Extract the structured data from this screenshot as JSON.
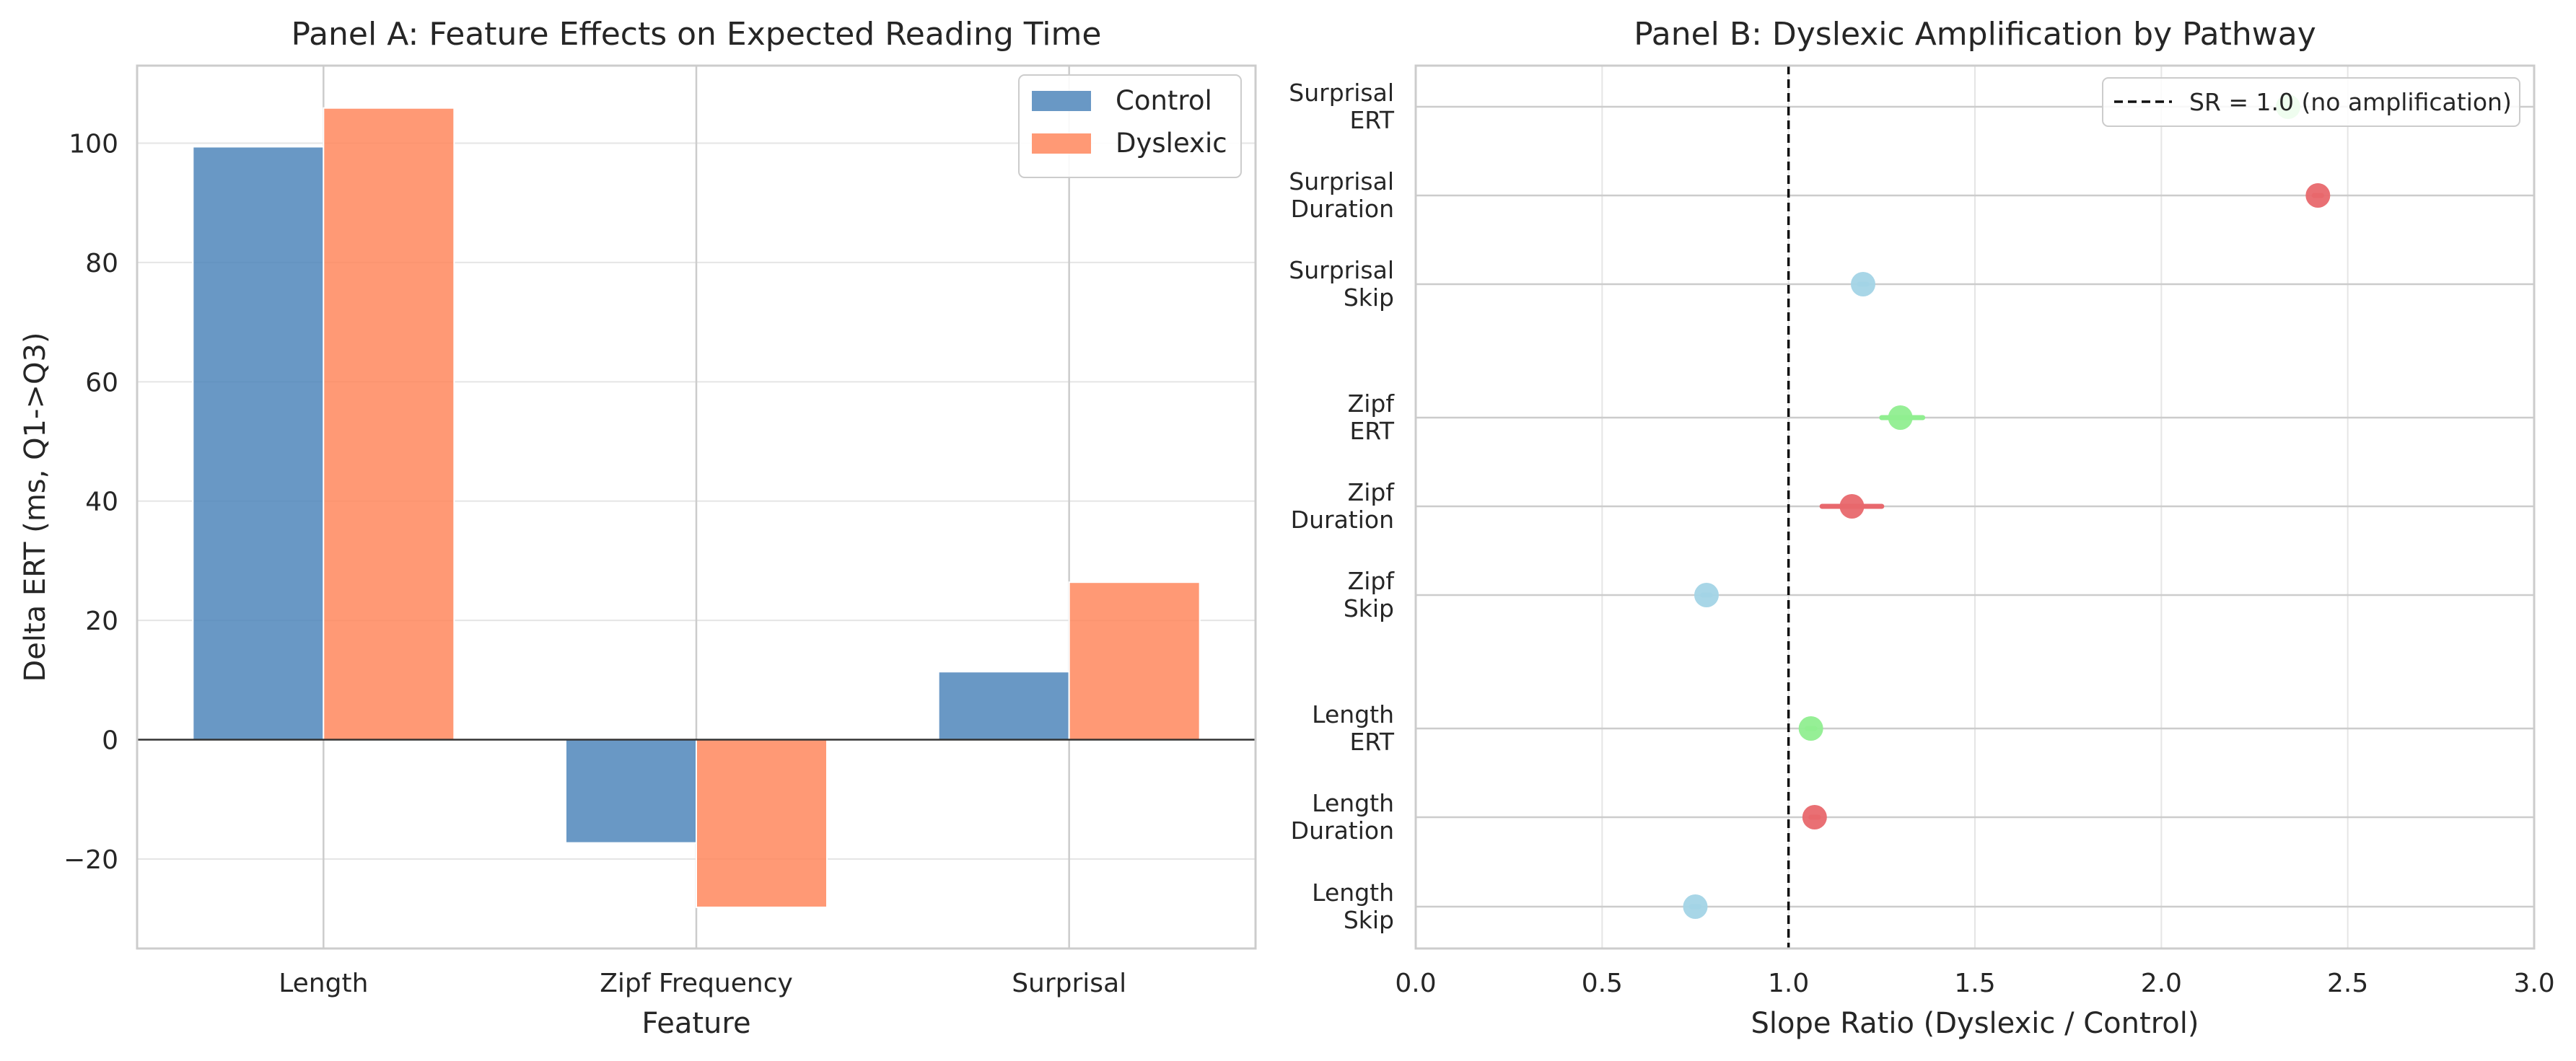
{
  "colors": {
    "control": "#4f86bb",
    "dyslexic": "#ff875d",
    "erl": "#90ee90",
    "duration": "#e8686d",
    "skip": "#a3d4e6",
    "grid": "#e5e5e5",
    "spine": "#cccccc"
  },
  "chart_data": [
    {
      "type": "bar",
      "title": "Panel A: Feature Effects on Expected Reading Time",
      "xlabel": "Feature",
      "ylabel": "Delta ERT (ms, Q1->Q3)",
      "categories": [
        "Length",
        "Zipf Frequency",
        "Surprisal"
      ],
      "series": [
        {
          "name": "Control",
          "values": [
            99.4,
            -17.3,
            11.4
          ]
        },
        {
          "name": "Dyslexic",
          "values": [
            105.9,
            -28.1,
            26.4
          ]
        }
      ],
      "ylim": [
        -35,
        113
      ],
      "yticks": [
        -20,
        0,
        20,
        40,
        60,
        80,
        100
      ],
      "ytick_labels": [
        "−20",
        "0",
        "20",
        "40",
        "60",
        "80",
        "100"
      ],
      "grid": true,
      "legend": "top-right"
    },
    {
      "type": "scatter",
      "title": "Panel B: Dyslexic Amplification by Pathway",
      "xlabel": "Slope Ratio (Dyslexic / Control)",
      "xlim": [
        0,
        3
      ],
      "xticks": [
        0.0,
        0.5,
        1.0,
        1.5,
        2.0,
        2.5,
        3.0
      ],
      "xtick_labels": [
        "0.0",
        "0.5",
        "1.0",
        "1.5",
        "2.0",
        "2.5",
        "3.0"
      ],
      "reference_line": {
        "x": 1.0,
        "label": "SR = 1.0 (no amplification)"
      },
      "legend": "top-right",
      "grid": true,
      "rows": [
        {
          "feature": "Surprisal",
          "pathway": "ERT",
          "value": 2.34,
          "ci": [
            2.32,
            2.36
          ]
        },
        {
          "feature": "Surprisal",
          "pathway": "Duration",
          "value": 2.42,
          "ci": [
            2.41,
            2.43
          ]
        },
        {
          "feature": "Surprisal",
          "pathway": "Skip",
          "value": 1.2,
          "ci": [
            1.19,
            1.21
          ]
        },
        {
          "feature": "Zipf",
          "pathway": "ERT",
          "value": 1.3,
          "ci": [
            1.25,
            1.36
          ]
        },
        {
          "feature": "Zipf",
          "pathway": "Duration",
          "value": 1.17,
          "ci": [
            1.09,
            1.25
          ]
        },
        {
          "feature": "Zipf",
          "pathway": "Skip",
          "value": 0.78,
          "ci": [
            0.77,
            0.79
          ]
        },
        {
          "feature": "Length",
          "pathway": "ERT",
          "value": 1.06,
          "ci": [
            1.05,
            1.07
          ]
        },
        {
          "feature": "Length",
          "pathway": "Duration",
          "value": 1.07,
          "ci": [
            1.06,
            1.08
          ]
        },
        {
          "feature": "Length",
          "pathway": "Skip",
          "value": 0.75,
          "ci": [
            0.74,
            0.76
          ]
        }
      ]
    }
  ]
}
